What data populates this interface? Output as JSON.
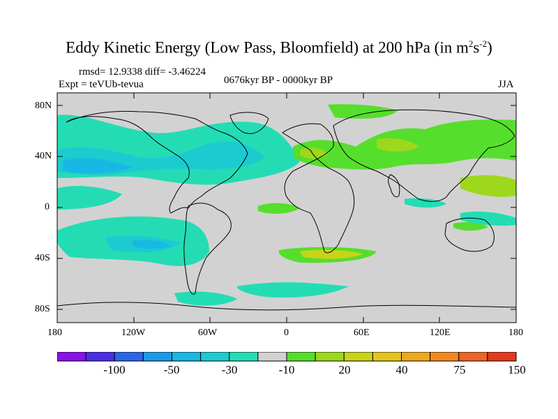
{
  "title": {
    "main": "Eddy Kinetic Energy (Low Pass, Bloomfield) at 200 hPa (in m",
    "sup1": "2",
    "mid": "s",
    "sup2": "-2",
    "end": ")"
  },
  "header": {
    "stats": "rmsd= 12.9338 diff= -3.46224",
    "experiment": "Expt = teVUb-tevua",
    "period": "0676kyr BP - 0000kyr BP",
    "season": "JJA"
  },
  "axes": {
    "lat_ticks": [
      "80N",
      "40N",
      "0",
      "40S",
      "80S"
    ],
    "lon_ticks": [
      "180",
      "120W",
      "60W",
      "0",
      "60E",
      "120E",
      "180"
    ]
  },
  "colorbar": {
    "colors": [
      "#8a12e6",
      "#4b2ee8",
      "#2a66e8",
      "#1c9ae6",
      "#18b8e4",
      "#1ccbd0",
      "#24dcb4",
      "#d2d2d2",
      "#56de2c",
      "#9ed81c",
      "#c8d419",
      "#e4c41c",
      "#eca81e",
      "#ee8a22",
      "#ec6426",
      "#e23a1c"
    ],
    "labels": [
      "-100",
      "-50",
      "-30",
      "-10",
      "20",
      "40",
      "75",
      "150"
    ]
  },
  "colors": {
    "background_field": "#d2d2d2",
    "coast": "#000000"
  }
}
